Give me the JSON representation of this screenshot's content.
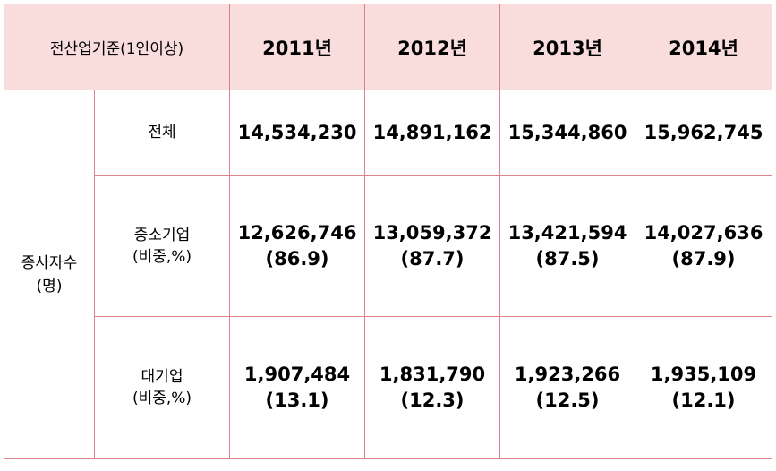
{
  "header": {
    "label": "전산업기준(1인이상)",
    "years": [
      "2011년",
      "2012년",
      "2013년",
      "2014년"
    ]
  },
  "group": {
    "label_line1": "종사자수",
    "label_line2": "(명)"
  },
  "rows": [
    {
      "label_line1": "전체",
      "values": [
        {
          "count": "14,534,230"
        },
        {
          "count": "14,891,162"
        },
        {
          "count": "15,344,860"
        },
        {
          "count": "15,962,745"
        }
      ]
    },
    {
      "label_line1": "중소기업",
      "label_line2": "(비중,%)",
      "values": [
        {
          "count": "12,626,746",
          "share": "(86.9)"
        },
        {
          "count": "13,059,372",
          "share": "(87.7)"
        },
        {
          "count": "13,421,594",
          "share": "(87.5)"
        },
        {
          "count": "14,027,636",
          "share": "(87.9)"
        }
      ]
    },
    {
      "label_line1": "대기업",
      "label_line2": "(비중,%)",
      "values": [
        {
          "count": "1,907,484",
          "share": "(13.1)"
        },
        {
          "count": "1,831,790",
          "share": "(12.3)"
        },
        {
          "count": "1,923,266",
          "share": "(12.5)"
        },
        {
          "count": "1,935,109",
          "share": "(12.1)"
        }
      ]
    }
  ]
}
